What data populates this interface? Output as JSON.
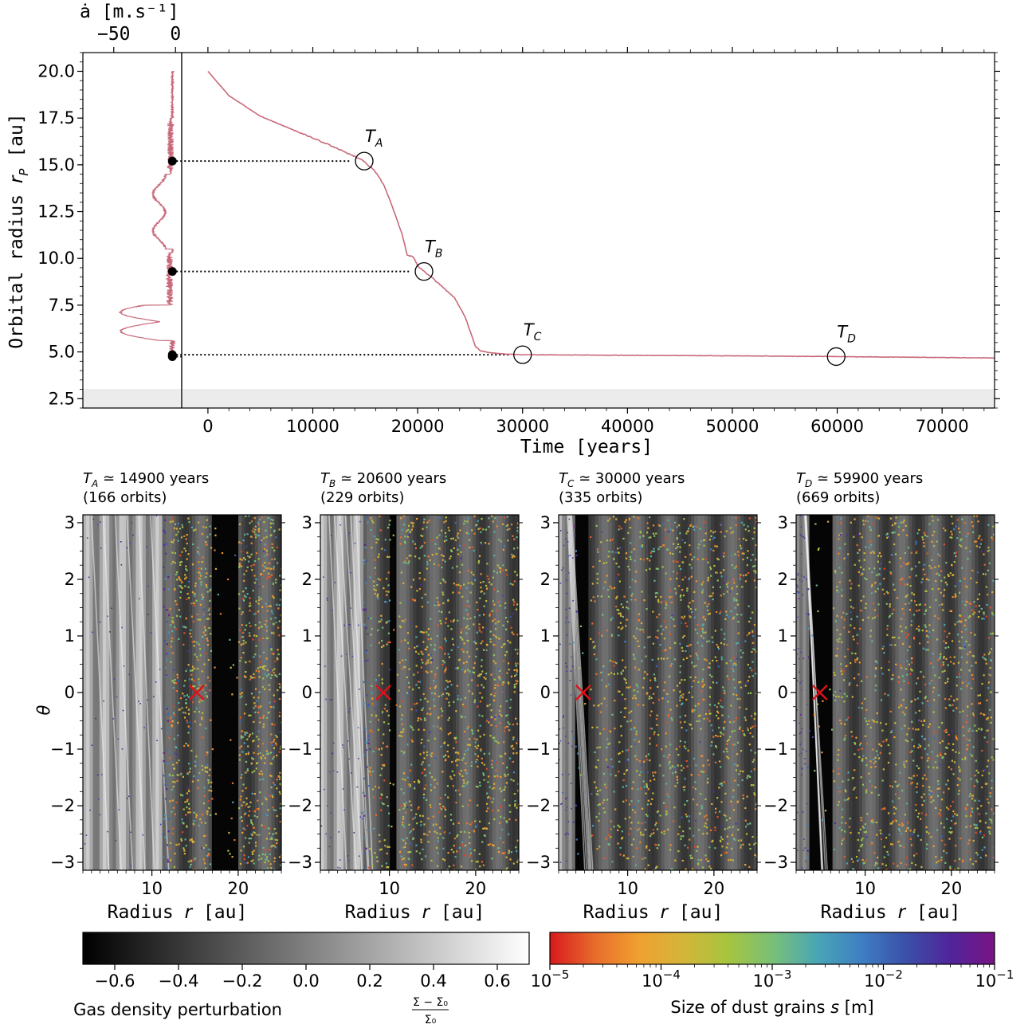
{
  "chart_data": [
    {
      "type": "line",
      "name": "rdot",
      "top_axis_label_text": "ȧ [m.s⁻¹]",
      "top_ticks": [
        "−50",
        "0"
      ],
      "top_tick_values": [
        -50,
        0
      ],
      "ylabel": "Orbital radius r_P [au]",
      "ylabel_text": "Orbital radius ",
      "ylabel_sym": "r",
      "ylabel_sub": "P",
      "ylabel_unit": " [au]",
      "y_ticks": [
        "2.5",
        "5.0",
        "7.5",
        "10.0",
        "12.5",
        "15.0",
        "17.5",
        "20.0"
      ],
      "y_tick_values": [
        2.5,
        5.0,
        7.5,
        10.0,
        12.5,
        15.0,
        17.5,
        20.0
      ],
      "ylim": [
        2.0,
        21.0
      ],
      "xlim": [
        -75,
        5
      ],
      "line_color": "#c8697a",
      "markers_r": [
        15.2,
        9.3,
        4.85,
        4.75
      ]
    },
    {
      "type": "line",
      "name": "migration",
      "xlabel": "Time [years]",
      "x_ticks": [
        "0",
        "10000",
        "20000",
        "30000",
        "40000",
        "50000",
        "60000",
        "70000"
      ],
      "x_tick_values": [
        0,
        10000,
        20000,
        30000,
        40000,
        50000,
        60000,
        70000
      ],
      "xlim": [
        -2500,
        75000
      ],
      "ylim": [
        2.0,
        21.0
      ],
      "shaded_band": [
        2.0,
        3.0
      ],
      "line_color": "#c8697a",
      "x": [
        0,
        2000,
        5000,
        8000,
        11000,
        14000,
        14900,
        16000,
        16800,
        17500,
        18000,
        18500,
        19000,
        19600,
        20000,
        20600,
        21500,
        22500,
        23500,
        24500,
        25200,
        25500,
        26000,
        27000,
        28000,
        30000,
        40000,
        50000,
        60000,
        70000,
        75000
      ],
      "y": [
        20.0,
        18.7,
        17.6,
        16.9,
        16.2,
        15.45,
        15.2,
        14.6,
        13.9,
        12.9,
        12.1,
        11.3,
        10.2,
        10.05,
        9.6,
        9.3,
        8.9,
        8.4,
        7.9,
        6.9,
        5.8,
        5.3,
        5.05,
        4.95,
        4.9,
        4.85,
        4.82,
        4.79,
        4.75,
        4.7,
        4.68
      ],
      "markers": [
        {
          "label": "T",
          "sub": "A",
          "t": 14900,
          "r": 15.2
        },
        {
          "label": "T",
          "sub": "B",
          "t": 20600,
          "r": 9.3
        },
        {
          "label": "T",
          "sub": "C",
          "t": 30000,
          "r": 4.85
        },
        {
          "label": "T",
          "sub": "D",
          "t": 59900,
          "r": 4.75
        }
      ]
    },
    {
      "type": "heatmap",
      "name": "snapshots",
      "xlabel": "Radius r [au]",
      "xlabel_text": "Radius ",
      "xlabel_sym": "r",
      "xlabel_unit": " [au]",
      "ylabel": "θ",
      "x_ticks": [
        "10",
        "20"
      ],
      "x_tick_values": [
        10,
        20
      ],
      "y_ticks": [
        "3",
        "2",
        "1",
        "0",
        "−1",
        "−2",
        "−3"
      ],
      "y_tick_values": [
        3,
        2,
        1,
        0,
        -1,
        -2,
        -3
      ],
      "xlim": [
        2.0,
        25.0
      ],
      "ylim": [
        -3.14,
        3.14
      ],
      "panels": [
        {
          "sym": "T",
          "sub": "A",
          "time_text": " ≃ 14900 years",
          "orbits_text": "(166 orbits)",
          "planet_r": 15.2,
          "gap": [
            16.8,
            20.0
          ],
          "dust_inner": 11.2
        },
        {
          "sym": "T",
          "sub": "B",
          "time_text": " ≃ 20600 years",
          "orbits_text": "(229 orbits)",
          "planet_r": 9.3,
          "gap": [
            10.0,
            11.0
          ],
          "dust_inner": 6.8
        },
        {
          "sym": "T",
          "sub": "C",
          "time_text": " ≃ 30000 years",
          "orbits_text": "(335 orbits)",
          "planet_r": 4.85,
          "gap": [
            4.0,
            5.6
          ],
          "dust_inner": 3.6
        },
        {
          "sym": "T",
          "sub": "D",
          "time_text": " ≃ 59900 years",
          "orbits_text": "(669 orbits)",
          "planet_r": 4.75,
          "gap": [
            3.4,
            6.2
          ],
          "dust_inner": 3.2
        }
      ]
    },
    {
      "type": "colorbar",
      "name": "gas-colorbar",
      "label": "Gas density perturbation (Σ − Σ₀)/Σ₀",
      "label_text": "Gas density perturbation",
      "frac_num": "Σ − Σ₀",
      "frac_den": "Σ₀",
      "range": [
        -0.7,
        0.7
      ],
      "ticks": [
        "−0.6",
        "−0.4",
        "−0.2",
        "0.0",
        "0.2",
        "0.4",
        "0.6"
      ],
      "tick_values": [
        -0.6,
        -0.4,
        -0.2,
        0.0,
        0.2,
        0.4,
        0.6
      ],
      "colors": [
        "#000000",
        "#ffffff"
      ]
    },
    {
      "type": "colorbar",
      "name": "dust-colorbar",
      "label": "Size of dust grains s [m]",
      "label_text": "Size of dust grains ",
      "label_sym": "s",
      "label_unit": " [m]",
      "scale": "log",
      "range_exp": [
        -5,
        -1
      ],
      "tick_base": "10",
      "tick_exps": [
        "−5",
        "−4",
        "−3",
        "−2",
        "−1"
      ],
      "tick_exp_values": [
        -5,
        -4,
        -3,
        -2,
        -1
      ],
      "colors": [
        "#d7191c",
        "#e86b2c",
        "#f0a030",
        "#d4b53a",
        "#a6c53e",
        "#79c078",
        "#4aa6b5",
        "#3e7fc3",
        "#3b50a8",
        "#50259b",
        "#7a1484"
      ]
    }
  ]
}
